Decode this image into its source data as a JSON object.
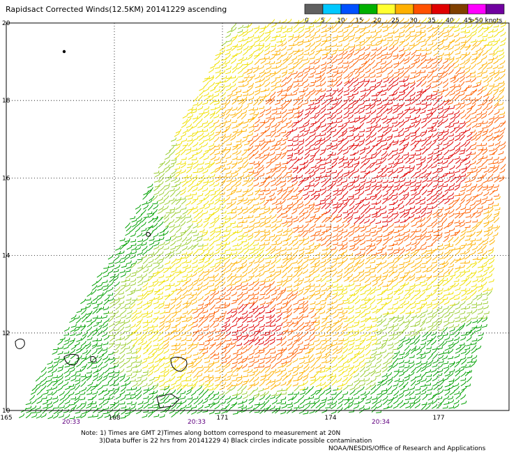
{
  "title": "Rapidsact Corrected Winds(12.5KM) 20141229 ascending",
  "legend": {
    "ticks": [
      "0",
      "5",
      "10",
      "15",
      "20",
      "25",
      "30",
      "35",
      "40",
      "45",
      ">50 knots"
    ],
    "colors": [
      "#606060",
      "#00c8ff",
      "#0050ff",
      "#00b000",
      "#ffff30",
      "#ffb000",
      "#ff5000",
      "#e00000",
      "#804000",
      "#ff00ff",
      "#7000a0"
    ]
  },
  "y_axis": {
    "labels": [
      "20",
      "18",
      "16",
      "14",
      "12",
      "10"
    ],
    "values": [
      20,
      18,
      16,
      14,
      12,
      10
    ]
  },
  "x_axis": {
    "labels": [
      "165",
      "168",
      "171",
      "174",
      "177"
    ],
    "values": [
      165,
      168,
      171,
      174,
      177
    ]
  },
  "pass_times": [
    "20:33",
    "20:33",
    "20:34"
  ],
  "pass_time_color": "#600080",
  "notes": {
    "line1": "Note: 1) Times are GMT 2)Times along bottom correspond to measurement at 20N",
    "line2": "3)Data buffer is 22 hrs from 20141229 4) Black circles indicate possible contamination"
  },
  "credit": "NOAA/NESDIS/Office of Research and Applications"
}
